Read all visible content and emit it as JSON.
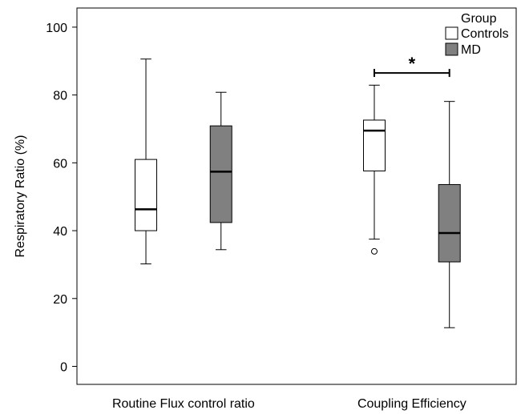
{
  "chart_data": {
    "type": "boxplot",
    "title": "",
    "ylabel": "Respiratory Ratio (%)",
    "xlabel": "",
    "ylim": [
      0,
      100
    ],
    "yticks": [
      "0",
      "20",
      "40",
      "60",
      "80",
      "100"
    ],
    "categories": [
      "Routine Flux control ratio",
      "Coupling Efficiency"
    ],
    "legend": {
      "title": "Group",
      "position": "top-right",
      "entries": [
        "Controls",
        "MD"
      ]
    },
    "series": [
      {
        "name": "Controls",
        "color": "#ffffff",
        "boxes": [
          {
            "category": "Routine Flux control ratio",
            "min": 30.2,
            "q1": 40.0,
            "median": 46.3,
            "q3": 61.0,
            "max": 90.6,
            "outliers": []
          },
          {
            "category": "Coupling Efficiency",
            "min": 37.5,
            "q1": 57.6,
            "median": 69.5,
            "q3": 72.6,
            "max": 82.9,
            "outliers": [
              33.9
            ]
          }
        ]
      },
      {
        "name": "MD",
        "color": "#808080",
        "boxes": [
          {
            "category": "Routine Flux control ratio",
            "min": 34.4,
            "q1": 42.4,
            "median": 57.4,
            "q3": 70.9,
            "max": 80.8,
            "outliers": []
          },
          {
            "category": "Coupling Efficiency",
            "min": 11.4,
            "q1": 30.8,
            "median": 39.3,
            "q3": 53.6,
            "max": 78.1,
            "outliers": []
          }
        ]
      }
    ],
    "annotations": [
      {
        "text": "*",
        "between": [
          "Controls",
          "MD"
        ],
        "category": "Coupling Efficiency",
        "value": 86.5
      }
    ],
    "grid": false
  }
}
